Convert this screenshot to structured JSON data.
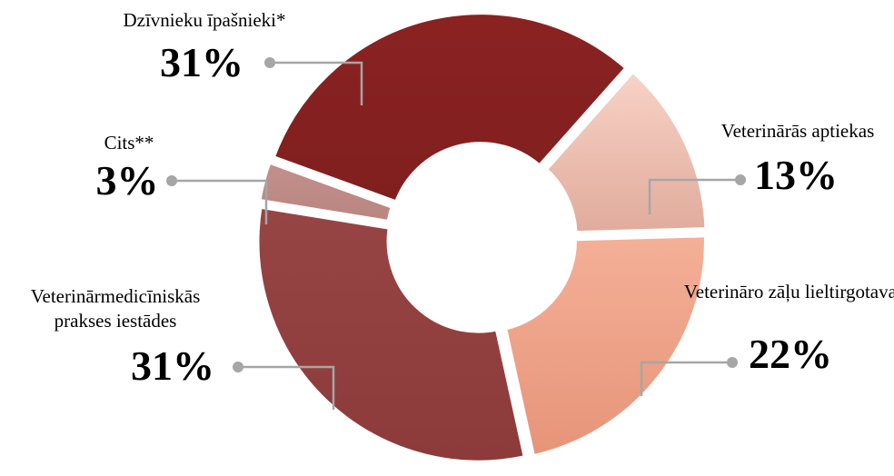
{
  "chart_data": {
    "type": "pie",
    "style": "doughnut",
    "title": "",
    "legend": "none",
    "slices": [
      {
        "label": "Dzīvnieku īpašnieki*",
        "value": 31,
        "value_label": "31%",
        "color": "#8b2222"
      },
      {
        "label": "Veterinārās aptiekas",
        "value": 13,
        "value_label": "13%",
        "color": "#f3c4b0"
      },
      {
        "label": "Veterināro zāļu lieltirgotavas",
        "value": 22,
        "value_label": "22%",
        "color": "#f0a585"
      },
      {
        "label": "Veterinārmedicīniskās prakses iestādes",
        "value": 31,
        "value_label": "31%",
        "color": "#944040"
      },
      {
        "label": "Cits**",
        "value": 3,
        "value_label": "3%",
        "color": "#c08c88"
      }
    ]
  }
}
